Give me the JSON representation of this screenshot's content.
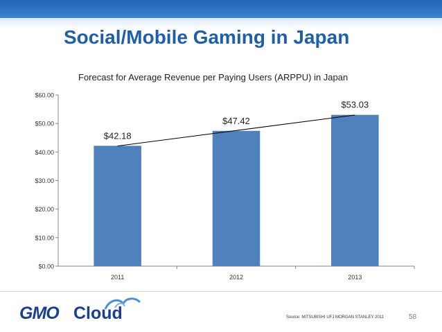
{
  "slide": {
    "title": "Social/Mobile Gaming in Japan",
    "source": "Source: MITSUBISHI UFJ MORGAN STANLEY 2011",
    "page_number": "58"
  },
  "logo": {
    "part1": "GMO",
    "part2": "Cloud"
  },
  "theme": {
    "band": "#2b6fbf",
    "title": "#1f5faa",
    "bar": "#4f81bd",
    "logo": "#1a3f8f"
  },
  "chart_data": {
    "type": "bar",
    "title": "Forecast for Average Revenue per Paying Users (ARPPU) in Japan",
    "categories": [
      "2011",
      "2012",
      "2013"
    ],
    "values": [
      42.18,
      47.42,
      53.03
    ],
    "data_labels": [
      "$42.18",
      "$47.42",
      "$53.03"
    ],
    "y_ticks": [
      "$0.00",
      "$10.00",
      "$20.00",
      "$30.00",
      "$40.00",
      "$50.00",
      "$60.00"
    ],
    "ylim": [
      0,
      60
    ],
    "trendline": "linear",
    "legend": "none",
    "grid": false,
    "bar_color": "#4f81bd"
  }
}
